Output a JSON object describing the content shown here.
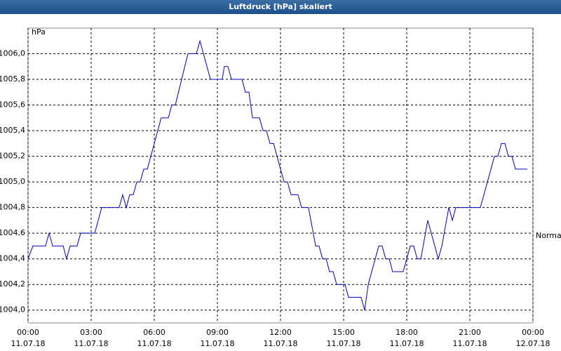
{
  "chart_data": {
    "type": "line",
    "title": "Luftdruck [hPa] skaliert",
    "y_unit": "hPa",
    "reference": {
      "value": 1004.58,
      "label": "Normal"
    },
    "xlim": [
      0,
      24
    ],
    "xticks": [
      {
        "value": 0,
        "label": [
          "00:00",
          "11.07.18"
        ]
      },
      {
        "value": 3,
        "label": [
          "03:00",
          "11.07.18"
        ]
      },
      {
        "value": 6,
        "label": [
          "06:00",
          "11.07.18"
        ]
      },
      {
        "value": 9,
        "label": [
          "09:00",
          "11.07.18"
        ]
      },
      {
        "value": 12,
        "label": [
          "12:00",
          "11.07.18"
        ]
      },
      {
        "value": 15,
        "label": [
          "15:00",
          "11.07.18"
        ]
      },
      {
        "value": 18,
        "label": [
          "18:00",
          "11.07.18"
        ]
      },
      {
        "value": 21,
        "label": [
          "21:00",
          "11.07.18"
        ]
      },
      {
        "value": 24,
        "label": [
          "00:00",
          "12.07.18"
        ]
      }
    ],
    "ylim": [
      1003.9,
      1006.2
    ],
    "yticks": [
      {
        "value": 1004.0,
        "label": "1004,0"
      },
      {
        "value": 1004.2,
        "label": "1004,2"
      },
      {
        "value": 1004.4,
        "label": "1004,4"
      },
      {
        "value": 1004.6,
        "label": "1004,6"
      },
      {
        "value": 1004.8,
        "label": "1004,8"
      },
      {
        "value": 1005.0,
        "label": "1005,0"
      },
      {
        "value": 1005.2,
        "label": "1005,2"
      },
      {
        "value": 1005.4,
        "label": "1005,4"
      },
      {
        "value": 1005.6,
        "label": "1005,6"
      },
      {
        "value": 1005.8,
        "label": "1005,8"
      },
      {
        "value": 1006.0,
        "label": "1006,0"
      }
    ],
    "grid": true,
    "x": [
      0,
      0.23,
      0.83,
      1.0,
      1.17,
      1.67,
      1.83,
      2.0,
      2.33,
      2.5,
      3.17,
      3.5,
      4.33,
      4.5,
      4.67,
      4.83,
      5.0,
      5.17,
      5.33,
      5.5,
      5.67,
      6.33,
      6.67,
      6.83,
      7.0,
      7.6,
      8.0,
      8.17,
      8.67,
      9.23,
      9.33,
      9.5,
      9.67,
      10.17,
      10.33,
      10.5,
      10.67,
      11.0,
      11.17,
      11.33,
      11.5,
      11.67,
      12.0,
      12.17,
      12.33,
      12.5,
      12.83,
      13.0,
      13.33,
      13.67,
      13.83,
      14.0,
      14.17,
      14.33,
      14.5,
      14.67,
      15.07,
      15.23,
      15.83,
      16.0,
      16.17,
      16.67,
      16.83,
      17.0,
      17.17,
      17.33,
      17.83,
      18.17,
      18.33,
      18.5,
      18.67,
      19.0,
      19.5,
      19.67,
      20.0,
      20.17,
      20.33,
      21.5,
      22.17,
      22.33,
      22.5,
      22.67,
      22.83,
      23.0,
      23.17,
      23.73
    ],
    "series": [
      {
        "name": "Luftdruck",
        "color": "#0000c0",
        "values": [
          1004.4,
          1004.5,
          1004.5,
          1004.6,
          1004.5,
          1004.5,
          1004.4,
          1004.5,
          1004.5,
          1004.6,
          1004.6,
          1004.8,
          1004.8,
          1004.9,
          1004.8,
          1004.9,
          1004.9,
          1005.0,
          1005.0,
          1005.1,
          1005.1,
          1005.5,
          1005.5,
          1005.6,
          1005.6,
          1006.0,
          1006.0,
          1006.1,
          1005.8,
          1005.8,
          1005.9,
          1005.9,
          1005.8,
          1005.8,
          1005.7,
          1005.7,
          1005.5,
          1005.5,
          1005.4,
          1005.4,
          1005.3,
          1005.3,
          1005.1,
          1005.0,
          1005.0,
          1004.9,
          1004.9,
          1004.8,
          1004.8,
          1004.5,
          1004.5,
          1004.4,
          1004.4,
          1004.3,
          1004.3,
          1004.2,
          1004.2,
          1004.1,
          1004.1,
          1004.0,
          1004.2,
          1004.5,
          1004.5,
          1004.4,
          1004.4,
          1004.3,
          1004.3,
          1004.5,
          1004.5,
          1004.4,
          1004.4,
          1004.7,
          1004.4,
          1004.5,
          1004.8,
          1004.7,
          1004.8,
          1004.8,
          1005.2,
          1005.2,
          1005.3,
          1005.3,
          1005.2,
          1005.2,
          1005.1,
          1005.1
        ]
      }
    ]
  }
}
